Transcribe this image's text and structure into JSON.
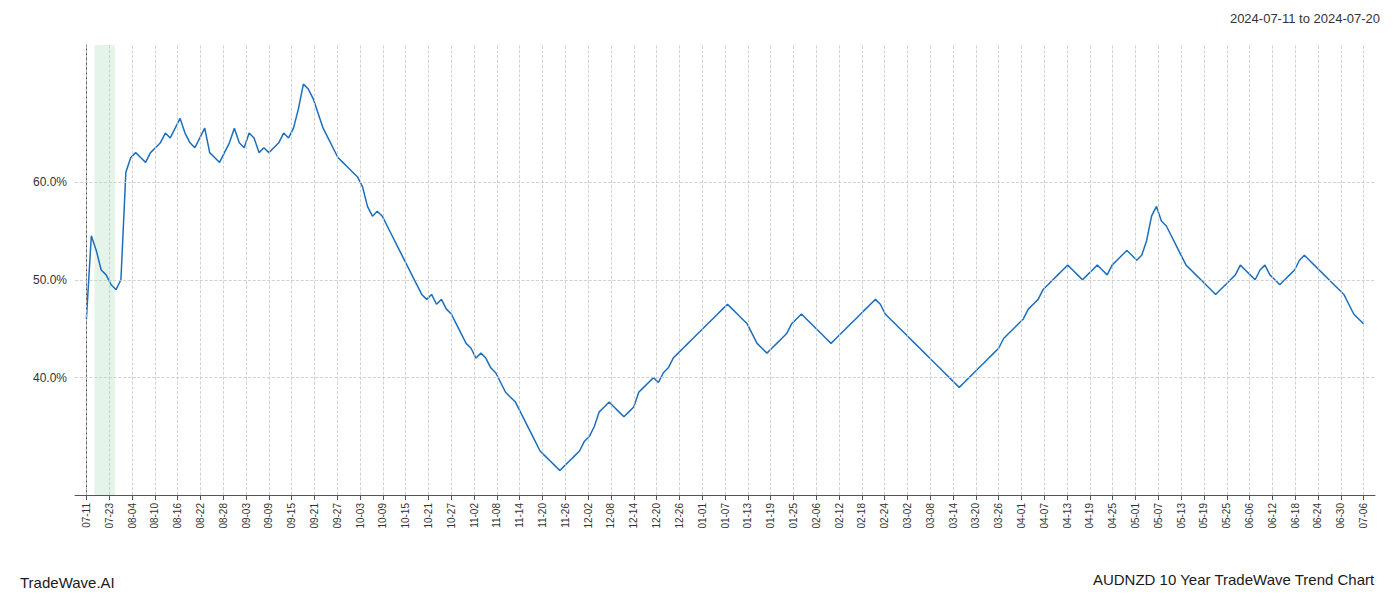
{
  "chart_data": {
    "type": "line",
    "title": "AUDNZD 10 Year TradeWave Trend Chart",
    "annotations": [
      "2024-07-11 to 2024-07-20",
      "TradeWave.AI"
    ],
    "color": "#1b6fbd",
    "grid": true,
    "shade": {
      "x": [
        0.35,
        1.25
      ],
      "color": "#d4edda"
    },
    "xlim": [
      -0.5,
      56.5
    ],
    "xticks": [
      {
        "value": 0,
        "label": "07-11"
      },
      {
        "value": 1,
        "label": "07-23"
      },
      {
        "value": 2,
        "label": "08-04"
      },
      {
        "value": 3,
        "label": "08-10"
      },
      {
        "value": 4,
        "label": "08-16"
      },
      {
        "value": 5,
        "label": "08-22"
      },
      {
        "value": 6,
        "label": "08-28"
      },
      {
        "value": 7,
        "label": "09-03"
      },
      {
        "value": 8,
        "label": "09-09"
      },
      {
        "value": 9,
        "label": "09-15"
      },
      {
        "value": 10,
        "label": "09-21"
      },
      {
        "value": 11,
        "label": "09-27"
      },
      {
        "value": 12,
        "label": "10-03"
      },
      {
        "value": 13,
        "label": "10-09"
      },
      {
        "value": 14,
        "label": "10-15"
      },
      {
        "value": 15,
        "label": "10-21"
      },
      {
        "value": 16,
        "label": "10-27"
      },
      {
        "value": 17,
        "label": "11-02"
      },
      {
        "value": 18,
        "label": "11-08"
      },
      {
        "value": 19,
        "label": "11-14"
      },
      {
        "value": 20,
        "label": "11-20"
      },
      {
        "value": 21,
        "label": "11-26"
      },
      {
        "value": 22,
        "label": "12-02"
      },
      {
        "value": 23,
        "label": "12-08"
      },
      {
        "value": 24,
        "label": "12-14"
      },
      {
        "value": 25,
        "label": "12-20"
      },
      {
        "value": 26,
        "label": "12-26"
      },
      {
        "value": 27,
        "label": "01-01"
      },
      {
        "value": 28,
        "label": "01-07"
      },
      {
        "value": 29,
        "label": "01-13"
      },
      {
        "value": 30,
        "label": "01-19"
      },
      {
        "value": 31,
        "label": "01-25"
      },
      {
        "value": 32,
        "label": "02-06"
      },
      {
        "value": 33,
        "label": "02-12"
      },
      {
        "value": 34,
        "label": "02-18"
      },
      {
        "value": 35,
        "label": "02-24"
      },
      {
        "value": 36,
        "label": "03-02"
      },
      {
        "value": 37,
        "label": "03-08"
      },
      {
        "value": 38,
        "label": "03-14"
      },
      {
        "value": 39,
        "label": "03-20"
      },
      {
        "value": 40,
        "label": "03-26"
      },
      {
        "value": 41,
        "label": "04-01"
      },
      {
        "value": 42,
        "label": "04-07"
      },
      {
        "value": 43,
        "label": "04-13"
      },
      {
        "value": 44,
        "label": "04-19"
      },
      {
        "value": 45,
        "label": "04-25"
      },
      {
        "value": 46,
        "label": "05-01"
      },
      {
        "value": 47,
        "label": "05-07"
      },
      {
        "value": 48,
        "label": "05-13"
      },
      {
        "value": 49,
        "label": "05-19"
      },
      {
        "value": 50,
        "label": "05-25"
      },
      {
        "value": 51,
        "label": "06-06"
      },
      {
        "value": 52,
        "label": "06-12"
      },
      {
        "value": 53,
        "label": "06-18"
      },
      {
        "value": 54,
        "label": "06-24"
      },
      {
        "value": 55,
        "label": "06-30"
      },
      {
        "value": 56,
        "label": "07-06"
      }
    ],
    "ylim": [
      28,
      74
    ],
    "yticks": [
      {
        "value": 40,
        "label": "40.0%"
      },
      {
        "value": 50,
        "label": "50.0%"
      },
      {
        "value": 60,
        "label": "60.0%"
      }
    ],
    "x": [
      0,
      0.216216,
      0.432432,
      0.648649,
      0.864865,
      1.081081,
      1.297297,
      1.513514,
      1.72973,
      1.945946,
      2.162162,
      2.378378,
      2.594595,
      2.810811,
      3.027027,
      3.243243,
      3.459459,
      3.675676,
      3.891892,
      4.108108,
      4.324324,
      4.540541,
      4.756757,
      4.972973,
      5.189189,
      5.405405,
      5.621622,
      5.837838,
      6.054054,
      6.27027,
      6.486486,
      6.702703,
      6.918919,
      7.135135,
      7.351351,
      7.567568,
      7.783784,
      8,
      8.216216,
      8.432432,
      8.648649,
      8.864865,
      9.081081,
      9.297297,
      9.513514,
      9.72973,
      9.945946,
      10.162162,
      10.378378,
      10.594595,
      10.810811,
      11.027027,
      11.243243,
      11.459459,
      11.675676,
      11.891892,
      12.108108,
      12.324324,
      12.540541,
      12.756757,
      12.972973,
      13.189189,
      13.405405,
      13.621622,
      13.837838,
      14.054054,
      14.27027,
      14.486486,
      14.702703,
      14.918919,
      15.135135,
      15.351351,
      15.567568,
      15.783784,
      16,
      16.216216,
      16.432432,
      16.648649,
      16.864865,
      17.081081,
      17.297297,
      17.513514,
      17.72973,
      17.945946,
      18.162162,
      18.378378,
      18.594595,
      18.810811,
      19.027027,
      19.243243,
      19.459459,
      19.675676,
      19.891892,
      20.108108,
      20.324324,
      20.540541,
      20.756757,
      20.972973,
      21.189189,
      21.405405,
      21.621622,
      21.837838,
      22.054054,
      22.27027,
      22.486486,
      22.702703,
      22.918919,
      23.135135,
      23.351351,
      23.567568,
      23.783784,
      24,
      24.216216,
      24.432432,
      24.648649,
      24.864865,
      25.081081,
      25.297297,
      25.513514,
      25.72973,
      25.945946,
      26.162162,
      26.378378,
      26.594595,
      26.810811,
      27.027027,
      27.243243,
      27.459459,
      27.675676,
      27.891892,
      28.108108,
      28.324324,
      28.540541,
      28.756757,
      28.972973,
      29.189189,
      29.405405,
      29.621622,
      29.837838,
      30.054054,
      30.27027,
      30.486486,
      30.702703,
      30.918919,
      31.135135,
      31.351351,
      31.567568,
      31.783784,
      32,
      32.216216,
      32.432432,
      32.648649,
      32.864865,
      33.081081,
      33.297297,
      33.513514,
      33.72973,
      33.945946,
      34.162162,
      34.378378,
      34.594595,
      34.810811,
      35.027027,
      35.243243,
      35.459459,
      35.675676,
      35.891892,
      36.108108,
      36.324324,
      36.540541,
      36.756757,
      36.972973,
      37.189189,
      37.405405,
      37.621622,
      37.837838,
      38.054054,
      38.27027,
      38.486486,
      38.702703,
      38.918919,
      39.135135,
      39.351351,
      39.567568,
      39.783784,
      40,
      40.216216,
      40.432432,
      40.648649,
      40.864865,
      41.081081,
      41.297297,
      41.513514,
      41.72973,
      41.945946,
      42.162162,
      42.378378,
      42.594595,
      42.810811,
      43.027027,
      43.243243,
      43.459459,
      43.675676,
      43.891892,
      44.108108,
      44.324324,
      44.540541,
      44.756757,
      44.972973,
      45.189189,
      45.405405,
      45.621622,
      45.837838,
      46.054054,
      46.27027,
      46.486486,
      46.702703,
      46.918919,
      47.135135,
      47.351351,
      47.567568,
      47.783784,
      48,
      48.216216,
      48.432432,
      48.648649,
      48.864865,
      49.081081,
      49.297297,
      49.513514,
      49.72973,
      49.945946,
      50.162162,
      50.378378,
      50.594595,
      50.810811,
      51.027027,
      51.243243,
      51.459459,
      51.675676,
      51.891892,
      52.108108,
      52.324324,
      52.540541,
      52.756757,
      52.972973,
      53.189189,
      53.405405,
      53.621622,
      53.837838,
      54.054054,
      54.27027,
      54.486486,
      54.702703,
      54.918919,
      55.135135,
      55.351351,
      55.567568,
      55.783784,
      56
    ],
    "values": [
      46.0,
      54.5,
      53.0,
      51.0,
      50.5,
      49.5,
      49.0,
      50.0,
      61.0,
      62.5,
      63.0,
      62.5,
      62.0,
      63.0,
      63.5,
      64.0,
      65.0,
      64.5,
      65.5,
      66.5,
      65.0,
      64.0,
      63.5,
      64.5,
      65.5,
      63.0,
      62.5,
      62.0,
      63.0,
      64.0,
      65.5,
      64.0,
      63.5,
      65.0,
      64.5,
      63.0,
      63.5,
      63.0,
      63.5,
      64.0,
      65.0,
      64.5,
      65.5,
      67.5,
      70.0,
      69.5,
      68.5,
      67.0,
      65.5,
      64.5,
      63.5,
      62.5,
      62.0,
      61.5,
      61.0,
      60.5,
      59.5,
      57.5,
      56.5,
      57.0,
      56.5,
      55.5,
      54.5,
      53.5,
      52.5,
      51.5,
      50.5,
      49.5,
      48.5,
      48.0,
      48.5,
      47.5,
      48.0,
      47.0,
      46.5,
      45.5,
      44.5,
      43.5,
      43.0,
      42.0,
      42.5,
      42.0,
      41.0,
      40.5,
      39.5,
      38.5,
      38.0,
      37.5,
      36.5,
      35.5,
      34.5,
      33.5,
      32.5,
      32.0,
      31.5,
      31.0,
      30.5,
      31.0,
      31.5,
      32.0,
      32.5,
      33.5,
      34.0,
      35.0,
      36.5,
      37.0,
      37.5,
      37.0,
      36.5,
      36.0,
      36.5,
      37.0,
      38.5,
      39.0,
      39.5,
      40.0,
      39.5,
      40.5,
      41.0,
      42.0,
      42.5,
      43.0,
      43.5,
      44.0,
      44.5,
      45.0,
      45.5,
      46.0,
      46.5,
      47.0,
      47.5,
      47.0,
      46.5,
      46.0,
      45.5,
      44.5,
      43.5,
      43.0,
      42.5,
      43.0,
      43.5,
      44.0,
      44.5,
      45.5,
      46.0,
      46.5,
      46.0,
      45.5,
      45.0,
      44.5,
      44.0,
      43.5,
      44.0,
      44.5,
      45.0,
      45.5,
      46.0,
      46.5,
      47.0,
      47.5,
      48.0,
      47.5,
      46.5,
      46.0,
      45.5,
      45.0,
      44.5,
      44.0,
      43.5,
      43.0,
      42.5,
      42.0,
      41.5,
      41.0,
      40.5,
      40.0,
      39.5,
      39.0,
      39.5,
      40.0,
      40.5,
      41.0,
      41.5,
      42.0,
      42.5,
      43.0,
      44.0,
      44.5,
      45.0,
      45.5,
      46.0,
      47.0,
      47.5,
      48.0,
      49.0,
      49.5,
      50.0,
      50.5,
      51.0,
      51.5,
      51.0,
      50.5,
      50.0,
      50.5,
      51.0,
      51.5,
      51.0,
      50.5,
      51.5,
      52.0,
      52.5,
      53.0,
      52.5,
      52.0,
      52.5,
      54.0,
      56.5,
      57.5,
      56.0,
      55.5,
      54.5,
      53.5,
      52.5,
      51.5,
      51.0,
      50.5,
      50.0,
      49.5,
      49.0,
      48.5,
      49.0,
      49.5,
      50.0,
      50.5,
      51.5,
      51.0,
      50.5,
      50.0,
      51.0,
      51.5,
      50.5,
      50.0,
      49.5,
      50.0,
      50.5,
      51.0,
      52.0,
      52.5,
      52.0,
      51.5,
      51.0,
      50.5,
      50.0,
      49.5,
      49.0,
      48.5,
      47.5,
      46.5,
      46.0,
      45.5
    ]
  }
}
